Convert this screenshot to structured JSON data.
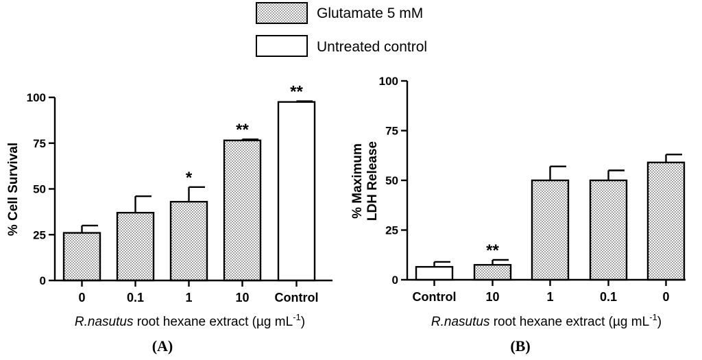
{
  "legend": {
    "items": [
      {
        "label": "Glutamate 5 mM",
        "fill": "dotted"
      },
      {
        "label": "Untreated control",
        "fill": "white"
      }
    ]
  },
  "chart_data": [
    {
      "type": "bar",
      "panel": "(A)",
      "categories": [
        "0",
        "0.1",
        "1",
        "10",
        "Control"
      ],
      "values": [
        26,
        37,
        43,
        76.5,
        97.5
      ],
      "errors": [
        4,
        9,
        8,
        0.6,
        0.4
      ],
      "fills": [
        "dotted",
        "dotted",
        "dotted",
        "dotted",
        "white"
      ],
      "significance": [
        "",
        "",
        "*",
        "**",
        "**"
      ],
      "ylabel": "% Cell Survival",
      "xlabel_italic": "R.nasutus",
      "xlabel_rest": " root hexane extract (µg mL",
      "xlabel_sup": "-1",
      "xlabel_close": ")",
      "ylim": [
        0,
        100
      ],
      "yticks": [
        0,
        25,
        50,
        75,
        100
      ]
    },
    {
      "type": "bar",
      "panel": "(B)",
      "categories": [
        "Control",
        "10",
        "1",
        "0.1",
        "0"
      ],
      "values": [
        6.5,
        7.5,
        50,
        50,
        59
      ],
      "errors": [
        2.5,
        2.5,
        7,
        5,
        4
      ],
      "fills": [
        "white",
        "dotted",
        "dotted",
        "dotted",
        "dotted"
      ],
      "significance": [
        "",
        "**",
        "",
        "",
        ""
      ],
      "ylabel_line1": "% Maximum",
      "ylabel_line2": "LDH Release",
      "xlabel_italic": "R.nasutus",
      "xlabel_rest": " root hexane extract (µg mL",
      "xlabel_sup": "-1",
      "xlabel_close": ")",
      "ylim": [
        0,
        100
      ],
      "yticks": [
        0,
        25,
        50,
        75,
        100
      ]
    }
  ]
}
